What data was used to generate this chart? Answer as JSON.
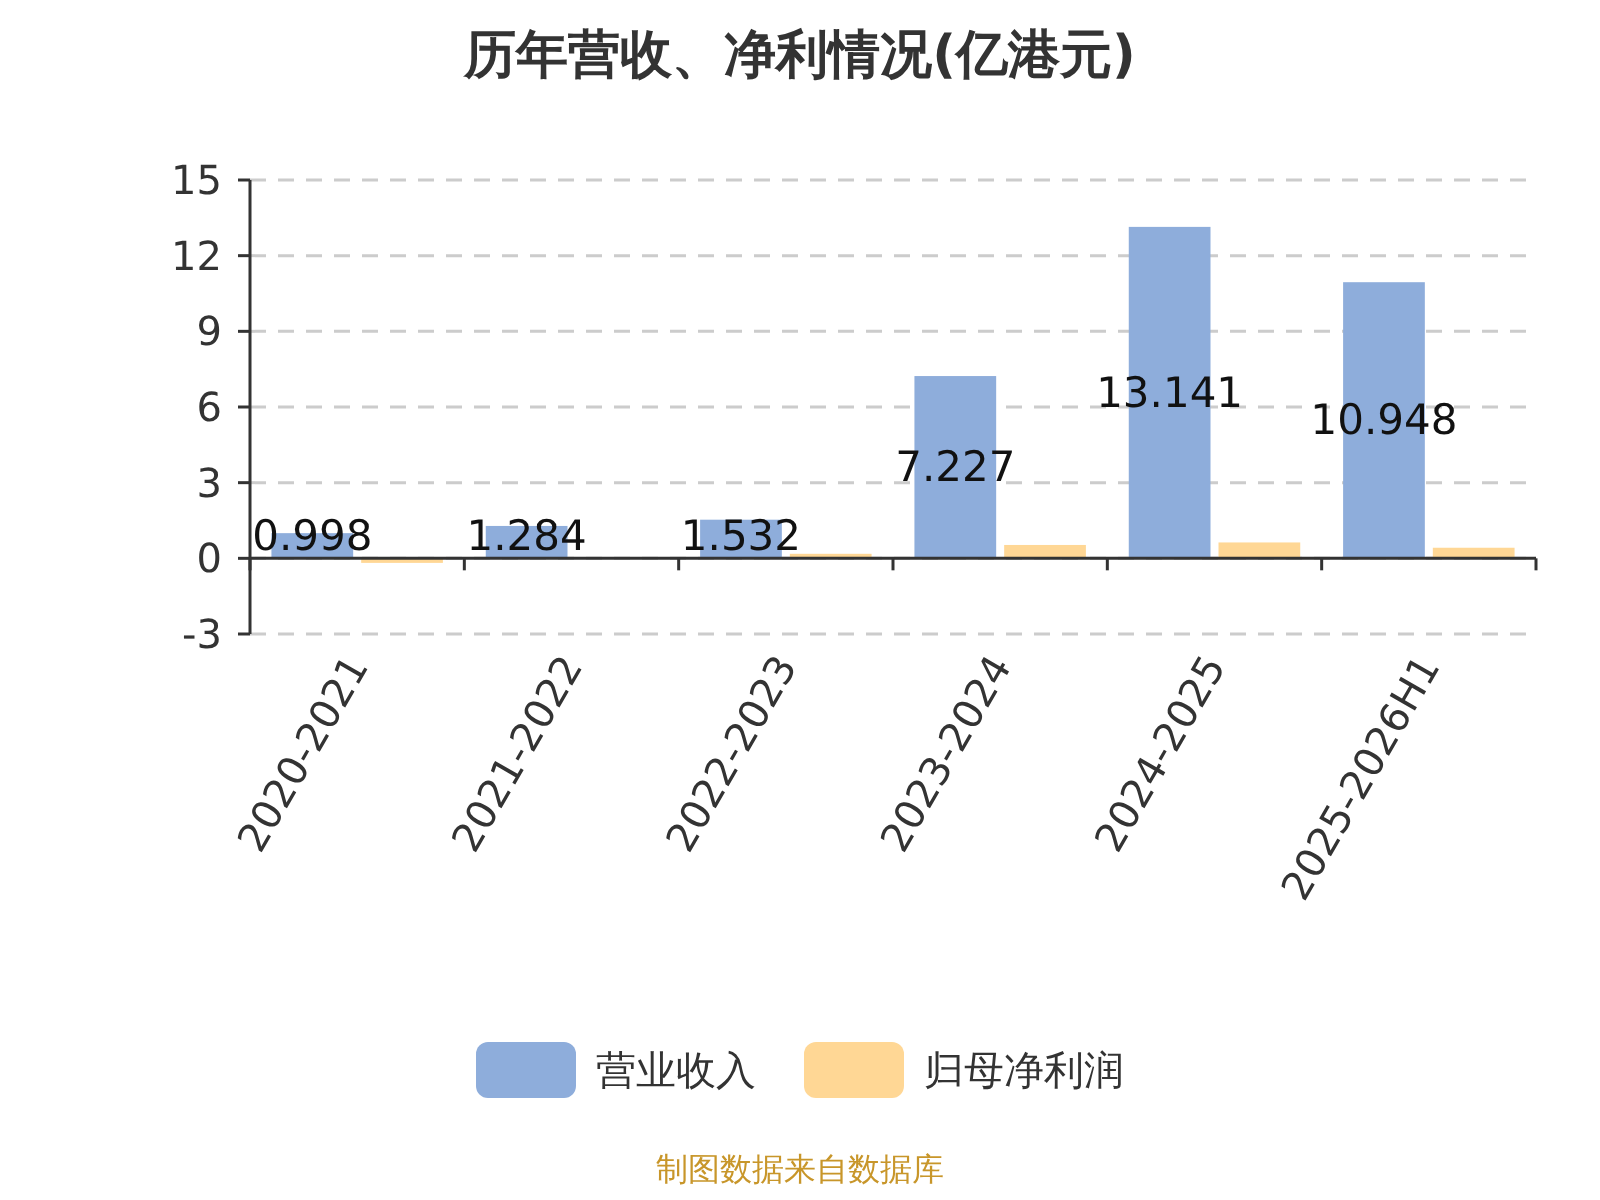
{
  "chart_data": {
    "type": "bar",
    "title": "历年营收、净利情况(亿港元)",
    "categories": [
      "2020-2021",
      "2021-2022",
      "2022-2023",
      "2023-2024",
      "2024-2025",
      "2025-2026H1"
    ],
    "series": [
      {
        "name": "营业收入",
        "color": "#8eaddb",
        "values": [
          0.998,
          1.284,
          1.532,
          7.227,
          13.141,
          10.948
        ],
        "value_labels": [
          "0.998",
          "1.284",
          "1.532",
          "7.227",
          "13.141",
          "10.948"
        ]
      },
      {
        "name": "归母净利润",
        "color": "#ffd795",
        "values": [
          -0.18,
          0,
          0.18,
          0.53,
          0.63,
          0.42
        ]
      }
    ],
    "ylim": [
      -3,
      15
    ],
    "yticks": [
      -3,
      0,
      3,
      6,
      9,
      12,
      15
    ],
    "grid": "y",
    "legend": "bottom",
    "annotations": [
      "制图数据来自数据库"
    ]
  }
}
